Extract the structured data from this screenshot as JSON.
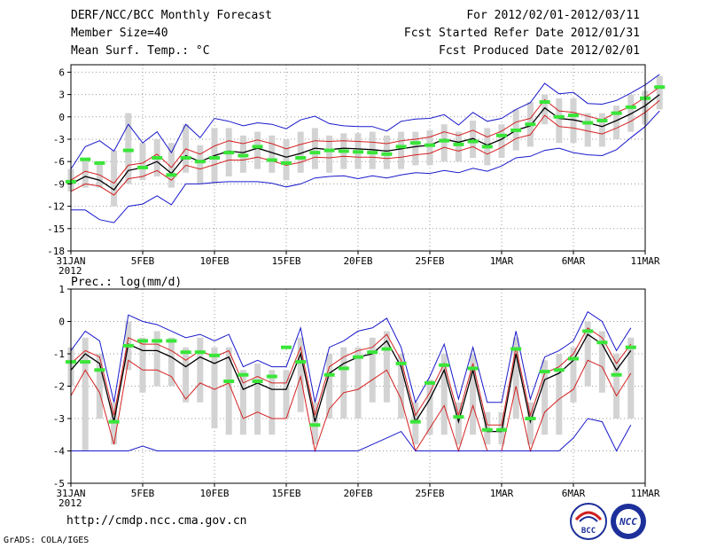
{
  "header": {
    "title": "DERF/NCC/BCC Monthly Forecast",
    "member_size": "Member Size=40",
    "variable": "Mean Surf. Temp.: °C",
    "period": "For 2012/02/01-2012/03/11",
    "refer_date": "Fcst Started Refer Date 2012/01/31",
    "produced_date": "Fcst Produced Date 2012/02/01"
  },
  "footer": {
    "url": "http://cmdp.ncc.cma.gov.cn",
    "credit": "GrADS: COLA/IGES",
    "logo_bcc": "BCC",
    "logo_ncc": "NCC"
  },
  "colors": {
    "ensemble_mean": "#000000",
    "spread_inner": "#d42020",
    "spread_outer": "#1818cc",
    "box": "#d3d3d3",
    "observed_marker": "#39e639",
    "grid": "#9a9a9a"
  },
  "chart_data": [
    {
      "type": "line",
      "title": "Mean Surf. Temp.: °C",
      "ylabel": "°C",
      "ylim": [
        -18,
        7
      ],
      "yticks": [
        6,
        3,
        0,
        -3,
        -6,
        -9,
        -12,
        -15,
        -18
      ],
      "x_day_range": [
        0,
        40
      ],
      "xticks": [
        {
          "day": 0,
          "label": "31JAN",
          "label2": "2012"
        },
        {
          "day": 5,
          "label": "5FEB"
        },
        {
          "day": 10,
          "label": "10FEB"
        },
        {
          "day": 15,
          "label": "15FEB"
        },
        {
          "day": 20,
          "label": "20FEB"
        },
        {
          "day": 25,
          "label": "25FEB"
        },
        {
          "day": 30,
          "label": "1MAR"
        },
        {
          "day": 35,
          "label": "6MAR"
        },
        {
          "day": 40,
          "label": "11MAR"
        }
      ],
      "series": [
        {
          "name": "ensemble mean",
          "role": "mean",
          "values": [
            -9,
            -8,
            -8.5,
            -9.8,
            -7.2,
            -6.8,
            -6,
            -7.6,
            -5.2,
            -6,
            -5.2,
            -4.6,
            -4.8,
            -4.2,
            -4.8,
            -5.4,
            -4.9,
            -4.2,
            -4.4,
            -4.2,
            -4.3,
            -4.4,
            -4.6,
            -4.3,
            -4,
            -3.8,
            -3,
            -3.4,
            -2.9,
            -3.8,
            -3,
            -1.8,
            -1.2,
            1.2,
            -0.2,
            -0.4,
            -0.8,
            -1.3,
            -0.5,
            0.4,
            1.5,
            3
          ]
        },
        {
          "name": "upper spread",
          "role": "inner",
          "values": [
            -8.5,
            -7.3,
            -7.8,
            -8.9,
            -6.5,
            -6.2,
            -5,
            -6.8,
            -4.3,
            -5,
            -3.9,
            -3.2,
            -3.6,
            -3.1,
            -3.6,
            -4.3,
            -3.7,
            -3.2,
            -3.3,
            -3.2,
            -3.3,
            -3.4,
            -3.6,
            -3.2,
            -3,
            -2.7,
            -2,
            -2.5,
            -1.8,
            -2.7,
            -1.9,
            -0.7,
            -0.2,
            2.3,
            0.8,
            0.6,
            0.1,
            -0.4,
            0.6,
            1.4,
            2.6,
            4
          ]
        },
        {
          "name": "lower spread",
          "role": "inner",
          "values": [
            -10,
            -9,
            -9.3,
            -10.5,
            -8.3,
            -8,
            -7.2,
            -8.5,
            -6.5,
            -7,
            -6.4,
            -5.8,
            -5.8,
            -5.4,
            -5.9,
            -6.5,
            -6.1,
            -5.4,
            -5.5,
            -5.3,
            -5.4,
            -5.4,
            -5.6,
            -5.4,
            -5.1,
            -4.9,
            -4.1,
            -4.6,
            -4,
            -5,
            -4.1,
            -2.9,
            -2.4,
            0.2,
            -1.3,
            -1.5,
            -1.9,
            -2.3,
            -1.5,
            -0.6,
            0.6,
            2.2
          ]
        },
        {
          "name": "max",
          "role": "outer",
          "values": [
            -7,
            -4,
            -3.2,
            -4.6,
            -1,
            -3.5,
            -2,
            -4.8,
            -1,
            -2.8,
            -0.2,
            -0.6,
            -1.2,
            -0.8,
            -1,
            -1.6,
            -0.4,
            0.1,
            -0.9,
            -1.2,
            -1.3,
            -1.3,
            -1.9,
            -0.6,
            -0.3,
            -0.2,
            0.3,
            -1.1,
            0.6,
            -0.6,
            -0.2,
            1,
            1.9,
            4.5,
            3.1,
            3.3,
            1.8,
            1.7,
            2.2,
            3.2,
            4.3,
            5.7
          ]
        },
        {
          "name": "min",
          "role": "outer",
          "values": [
            -12.5,
            -12.5,
            -13.8,
            -14.2,
            -12,
            -11.7,
            -10.6,
            -11.8,
            -9,
            -9,
            -8.8,
            -8.7,
            -8.7,
            -8.7,
            -8.9,
            -9.4,
            -9,
            -8.2,
            -8,
            -7.9,
            -8.3,
            -7.9,
            -8.2,
            -7.8,
            -7.5,
            -7.6,
            -7.2,
            -7.5,
            -6.9,
            -7.3,
            -6.6,
            -5.5,
            -5.3,
            -4.5,
            -4.2,
            -4.8,
            -5.1,
            -5.2,
            -4.4,
            -2.8,
            -1.3,
            0.8
          ]
        }
      ],
      "boxes": [
        [
          -10,
          -7
        ],
        [
          -9.5,
          -5.8
        ],
        [
          -9.5,
          -6.2
        ],
        [
          -12,
          -4.5
        ],
        [
          -9,
          0.5
        ],
        [
          -8.5,
          -3.5
        ],
        [
          -8,
          -3
        ],
        [
          -9.5,
          -3.5
        ],
        [
          -7.5,
          -1
        ],
        [
          -9,
          -3.8
        ],
        [
          -9,
          -1.5
        ],
        [
          -8,
          -1.5
        ],
        [
          -7.5,
          -2.5
        ],
        [
          -7,
          -2
        ],
        [
          -7.5,
          -2.5
        ],
        [
          -8.5,
          -3
        ],
        [
          -7.5,
          -2
        ],
        [
          -7,
          -1.5
        ],
        [
          -7.5,
          -2.5
        ],
        [
          -7,
          -2.2
        ],
        [
          -7,
          -2.2
        ],
        [
          -7,
          -2
        ],
        [
          -7,
          -2.5
        ],
        [
          -7,
          -2
        ],
        [
          -6.5,
          -2
        ],
        [
          -6.5,
          -1.8
        ],
        [
          -6,
          -1
        ],
        [
          -6,
          -2
        ],
        [
          -5.5,
          -0.5
        ],
        [
          -6.5,
          -1.5
        ],
        [
          -5.5,
          -1
        ],
        [
          -4.5,
          1
        ],
        [
          -4,
          2
        ],
        [
          -1,
          3
        ],
        [
          -3.5,
          2.5
        ],
        [
          -3.5,
          2.5
        ],
        [
          -4,
          0.5
        ],
        [
          -4,
          0.5
        ],
        [
          -3,
          1.5
        ],
        [
          -2,
          3
        ],
        [
          -1,
          3.5
        ],
        [
          1,
          5.5
        ]
      ],
      "observed": [
        -8.7,
        -5.7,
        -6.2,
        null,
        -4.5,
        -6.8,
        -5.5,
        -7.8,
        -5.5,
        -6,
        -5.5,
        -4.8,
        -5.2,
        -4,
        -5.8,
        -6.2,
        -5.5,
        -4.8,
        -4.5,
        -4.6,
        -4.7,
        -4.8,
        -5,
        -4,
        -3.5,
        -3.8,
        -3.2,
        -3.7,
        -3.3,
        -4,
        -2.5,
        -1.8,
        -1,
        2,
        0,
        0.2,
        -0.8,
        -0.5,
        0.5,
        1.3,
        2.5,
        4
      ]
    },
    {
      "type": "line",
      "title": "Prec.: log(mm/d)",
      "ylabel": "log(mm/d)",
      "ylim": [
        -5,
        1
      ],
      "yticks": [
        1,
        0,
        -1,
        -2,
        -3,
        -4,
        -5
      ],
      "x_day_range": [
        0,
        40
      ],
      "xticks": [
        {
          "day": 0,
          "label": "31JAN",
          "label2": "2012"
        },
        {
          "day": 5,
          "label": "5FEB"
        },
        {
          "day": 10,
          "label": "10FEB"
        },
        {
          "day": 15,
          "label": "15FEB"
        },
        {
          "day": 20,
          "label": "20FEB"
        },
        {
          "day": 25,
          "label": "25FEB"
        },
        {
          "day": 30,
          "label": "1MAR"
        },
        {
          "day": 35,
          "label": "6MAR"
        },
        {
          "day": 40,
          "label": "11MAR"
        }
      ],
      "series": [
        {
          "name": "ensemble mean",
          "role": "mean",
          "values": [
            -1.5,
            -1,
            -1.3,
            -3.1,
            -0.7,
            -0.9,
            -0.9,
            -1.1,
            -1.4,
            -1.1,
            -1.3,
            -1.1,
            -2.1,
            -1.9,
            -2.1,
            -2.1,
            -1,
            -3.1,
            -1.6,
            -1.3,
            -1.1,
            -1,
            -0.6,
            -1.4,
            -3.1,
            -2.4,
            -1.5,
            -3.1,
            -1.5,
            -3.4,
            -3.4,
            -1,
            -3.1,
            -1.8,
            -1.6,
            -1.2,
            -0.4,
            -0.7,
            -1.5,
            -0.9
          ]
        },
        {
          "name": "upper spread",
          "role": "inner",
          "values": [
            -1.3,
            -0.9,
            -1.1,
            -2.9,
            -0.5,
            -0.7,
            -0.7,
            -0.9,
            -1.2,
            -0.9,
            -1.1,
            -0.9,
            -1.9,
            -1.7,
            -1.9,
            -1.9,
            -0.8,
            -2.9,
            -1.4,
            -1.1,
            -0.9,
            -0.8,
            -0.4,
            -1.2,
            -2.9,
            -2.2,
            -1.3,
            -2.9,
            -1.3,
            -3.2,
            -3.2,
            -0.8,
            -2.9,
            -1.6,
            -1.4,
            -1,
            -0.2,
            -0.5,
            -1.3,
            -0.7
          ]
        },
        {
          "name": "lower spread",
          "role": "inner",
          "values": [
            -2.3,
            -1.5,
            -2.2,
            -3.8,
            -1.2,
            -1.5,
            -1.5,
            -1.7,
            -2.4,
            -1.9,
            -2.1,
            -1.9,
            -3,
            -2.8,
            -3,
            -3,
            -1.7,
            -4,
            -2.7,
            -2.2,
            -2.1,
            -1.8,
            -1.5,
            -2.4,
            -4,
            -3.3,
            -2.6,
            -4,
            -2.6,
            -4,
            -4,
            -2,
            -4,
            -2.8,
            -2.4,
            -2.1,
            -1.2,
            -1.4,
            -2.3,
            -1.6
          ]
        },
        {
          "name": "max",
          "role": "outer",
          "values": [
            -0.9,
            -0.3,
            -0.6,
            -2.5,
            0.2,
            0,
            -0.1,
            -0.3,
            -0.5,
            -0.4,
            -0.6,
            -0.4,
            -1.4,
            -1.2,
            -1.4,
            -1.4,
            -0.2,
            -2.5,
            -0.8,
            -0.6,
            -0.3,
            -0.2,
            0.1,
            -0.8,
            -2.5,
            -1.7,
            -0.7,
            -2.4,
            -0.8,
            -2.5,
            -2.5,
            -0.3,
            -2.4,
            -1.1,
            -0.9,
            -0.6,
            0.3,
            0,
            -0.9,
            -0.2
          ]
        },
        {
          "name": "min",
          "role": "outer",
          "values": [
            -4,
            -4,
            -4,
            -4,
            -4,
            -3.85,
            -4,
            -4,
            -4,
            -4,
            -4,
            -4,
            -4,
            -4,
            -4,
            -4,
            -4,
            -4,
            -4,
            -4,
            -4,
            -3.8,
            -3.6,
            -3.4,
            -4,
            -4,
            -4,
            -4,
            -4,
            -4,
            -4,
            -4,
            -4,
            -4,
            -4,
            -3.6,
            -3,
            -3.1,
            -4,
            -3.2
          ]
        }
      ],
      "boxes": [
        [
          -2,
          -0.8
        ],
        [
          -4,
          -0.5
        ],
        [
          -3,
          -1
        ],
        [
          -3.8,
          -2.5
        ],
        [
          -1.5,
          0
        ],
        [
          -2.2,
          -0.5
        ],
        [
          -2,
          -0.3
        ],
        [
          -2,
          -0.5
        ],
        [
          -2.5,
          -0.8
        ],
        [
          -2.5,
          -0.5
        ],
        [
          -3.3,
          -0.8
        ],
        [
          -3.5,
          -0.8
        ],
        [
          -3.5,
          -1.5
        ],
        [
          -3.5,
          -1.3
        ],
        [
          -3.5,
          -1.5
        ],
        [
          -3,
          -1.5
        ],
        [
          -2.8,
          -0.5
        ],
        [
          -3.8,
          -2.5
        ],
        [
          -3,
          -1
        ],
        [
          -3,
          -0.8
        ],
        [
          -3,
          -0.8
        ],
        [
          -2.5,
          -0.5
        ],
        [
          -2.5,
          -0.3
        ],
        [
          -3,
          -1
        ],
        [
          -3.8,
          -2.5
        ],
        [
          -3.5,
          -1.8
        ],
        [
          -3.5,
          -1
        ],
        [
          -3.8,
          -2.5
        ],
        [
          -3.5,
          -1
        ],
        [
          -3.8,
          -2.8
        ],
        [
          -3.8,
          -2.8
        ],
        [
          -3,
          -0.5
        ],
        [
          -3.8,
          -2.5
        ],
        [
          -3.5,
          -1.2
        ],
        [
          -3.5,
          -1
        ],
        [
          -2.5,
          -0.8
        ],
        [
          -2,
          0
        ],
        [
          -2.2,
          -0.3
        ],
        [
          -3,
          -1
        ],
        [
          -3,
          -0.5
        ]
      ],
      "observed": [
        -1.25,
        -1.25,
        -1.5,
        -3.1,
        -0.75,
        -0.6,
        -0.6,
        -0.6,
        -0.95,
        -0.95,
        -1.05,
        -1.85,
        -1.65,
        -1.85,
        -1.7,
        -0.8,
        -1.25,
        -3.2,
        -1.65,
        -1.45,
        -1.1,
        -0.95,
        -0.85,
        -1.3,
        -3.1,
        -1.9,
        -1.35,
        -2.95,
        -1.45,
        -3.35,
        -3.35,
        -0.85,
        -3,
        -1.55,
        -1.5,
        -1.15,
        -0.3,
        -0.65,
        -1.65,
        -0.8
      ]
    }
  ]
}
